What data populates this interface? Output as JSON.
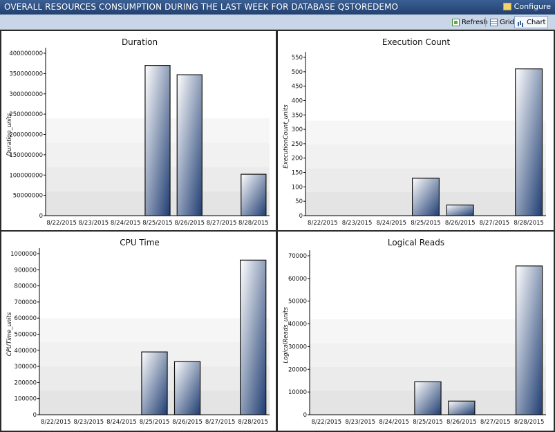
{
  "header": {
    "title": "OVERALL RESOURCES CONSUMPTION DURING THE LAST WEEK FOR DATABASE QSTOREDEMO",
    "configure_label": "Configure"
  },
  "toolbar": {
    "refresh_label": "Refresh",
    "grid_label": "Grid",
    "chart_label": "Chart"
  },
  "colors": {
    "bar_dark": "#1f3d72",
    "bar_light": "#ffffff",
    "titlebar": "#2b4c7e"
  },
  "chart_data": [
    {
      "type": "bar",
      "title": "Duration",
      "ylabel": "Duration_units",
      "categories": [
        "8/22/2015",
        "8/23/2015",
        "8/24/2015",
        "8/25/2015",
        "8/26/2015",
        "8/27/2015",
        "8/28/2015"
      ],
      "values": [
        0,
        0,
        0,
        370000000,
        347000000,
        0,
        102000000
      ],
      "ylim": [
        0,
        400000000
      ],
      "ticks": [
        0,
        50000000,
        100000000,
        150000000,
        200000000,
        250000000,
        300000000,
        350000000,
        400000000
      ],
      "tick_labels": [
        "0",
        "50000000",
        "100000000",
        "150000000",
        "200000000",
        "250000000",
        "300000000",
        "350000000",
        "400000000"
      ]
    },
    {
      "type": "bar",
      "title": "Execution Count",
      "ylabel": "ExecutionCount_units",
      "categories": [
        "8/22/2015",
        "8/23/2015",
        "8/24/2015",
        "8/25/2015",
        "8/26/2015",
        "8/27/2015",
        "8/28/2015"
      ],
      "values": [
        0,
        0,
        0,
        130,
        37,
        0,
        510
      ],
      "ylim": [
        0,
        550
      ],
      "ticks": [
        0,
        50,
        100,
        150,
        200,
        250,
        300,
        350,
        400,
        450,
        500,
        550
      ],
      "tick_labels": [
        "0",
        "50",
        "100",
        "150",
        "200",
        "250",
        "300",
        "350",
        "400",
        "450",
        "500",
        "550"
      ]
    },
    {
      "type": "bar",
      "title": "CPU Time",
      "ylabel": "CPUTime_units",
      "categories": [
        "8/22/2015",
        "8/23/2015",
        "8/24/2015",
        "8/25/2015",
        "8/26/2015",
        "8/27/2015",
        "8/28/2015"
      ],
      "values": [
        0,
        0,
        0,
        390000,
        330000,
        0,
        960000
      ],
      "ylim": [
        0,
        1000000
      ],
      "ticks": [
        0,
        100000,
        200000,
        300000,
        400000,
        500000,
        600000,
        700000,
        800000,
        900000,
        1000000
      ],
      "tick_labels": [
        "0",
        "100000",
        "200000",
        "300000",
        "400000",
        "500000",
        "600000",
        "700000",
        "800000",
        "900000",
        "1000000"
      ]
    },
    {
      "type": "bar",
      "title": "Logical Reads",
      "ylabel": "LogicalReads_units",
      "categories": [
        "8/22/2015",
        "8/23/2015",
        "8/24/2015",
        "8/25/2015",
        "8/26/2015",
        "8/27/2015",
        "8/28/2015"
      ],
      "values": [
        0,
        0,
        0,
        14500,
        6000,
        0,
        65500
      ],
      "ylim": [
        0,
        70000
      ],
      "ticks": [
        0,
        10000,
        20000,
        30000,
        40000,
        50000,
        60000,
        70000
      ],
      "tick_labels": [
        "0",
        "10000",
        "20000",
        "30000",
        "40000",
        "50000",
        "60000",
        "70000"
      ]
    }
  ]
}
